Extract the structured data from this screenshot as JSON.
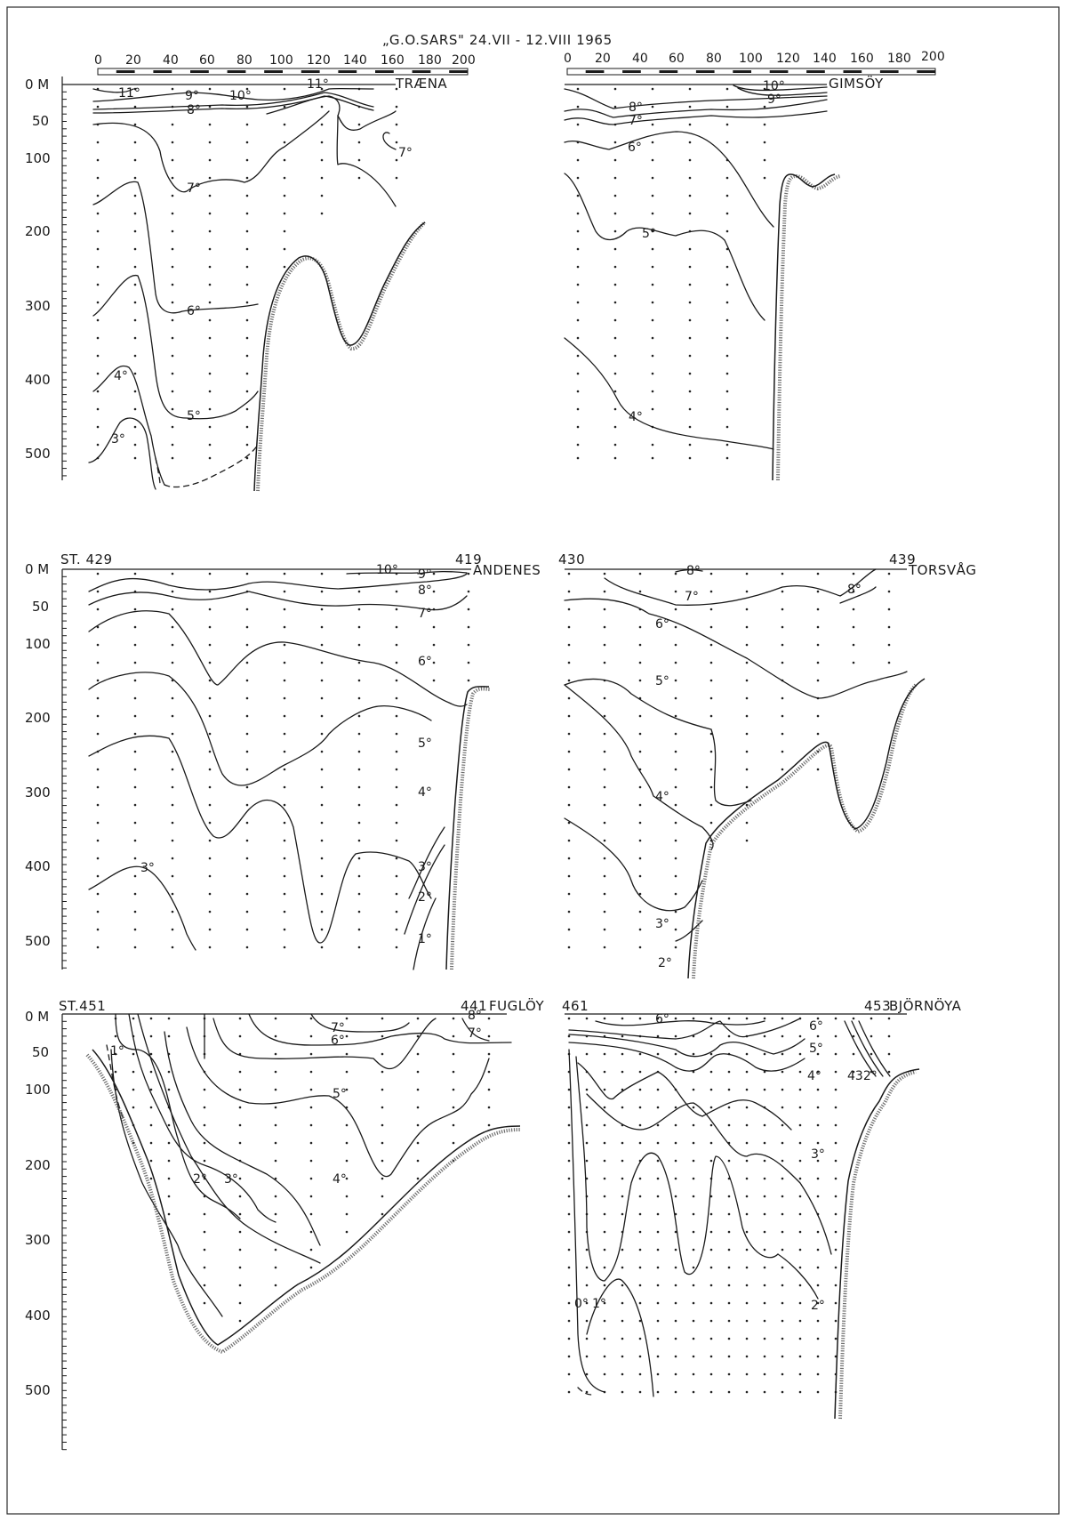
{
  "title": "„G.O.SARS\"  24.VII - 12.VIII  1965",
  "scale": {
    "ticks": [
      "0",
      "20",
      "40",
      "60",
      "80",
      "100",
      "120",
      "140",
      "160",
      "180",
      "200"
    ]
  },
  "depth_labels": [
    "0 M",
    "50",
    "100",
    "200",
    "300",
    "400",
    "500"
  ],
  "panels": [
    {
      "name": "TRÆNA",
      "station_left": "",
      "station_right": "",
      "isotherm_labels": [
        "11°",
        "9°",
        "10°",
        "11°",
        "8°",
        "7°",
        "7°",
        "6°",
        "4°",
        "5°",
        "3°"
      ]
    },
    {
      "name": "GIMSÖY",
      "station_left": "",
      "station_right": "",
      "isotherm_labels": [
        "10°",
        "9°",
        "8°",
        "7°",
        "6°",
        "5°",
        "4°"
      ]
    },
    {
      "name": "ANDENES",
      "station_left": "ST. 429",
      "station_right": "419",
      "isotherm_labels": [
        "10°",
        "9°",
        "8°",
        "7°",
        "6°",
        "5°",
        "4°",
        "3°",
        "2°",
        "1°",
        "3°"
      ]
    },
    {
      "name": "TORSVÅG",
      "station_left": "430",
      "station_right": "439",
      "isotherm_labels": [
        "8°",
        "7°",
        "8°",
        "6°",
        "5°",
        "4°",
        "3°",
        "2°"
      ]
    },
    {
      "name": "FUGLÖY",
      "station_left": "ST.451",
      "station_right": "441",
      "isotherm_labels": [
        "8°",
        "7°",
        "7°",
        "6°",
        "5°",
        "1°",
        "2°",
        "3°",
        "4°"
      ]
    },
    {
      "name": "BJÖRNÖYA",
      "station_left": "461",
      "station_right": "453",
      "isotherm_labels": [
        "6°",
        "6°",
        "5°",
        "4°",
        "432°",
        "3°",
        "0°",
        "1°",
        "2°"
      ]
    }
  ]
}
